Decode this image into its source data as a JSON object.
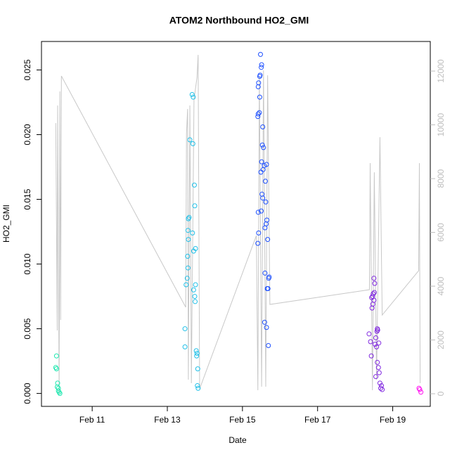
{
  "chart_data": {
    "type": "scatter",
    "title": "ATOM2 Northbound HO2_GMI",
    "xlabel": "Date",
    "ylabel": "HO2_GMI",
    "xlim": [
      9.65,
      20.0
    ],
    "ylim": [
      -0.001,
      0.0272
    ],
    "y2lim": [
      -470,
      13100
    ],
    "xticks": [
      {
        "value": 11,
        "label": "Feb 11"
      },
      {
        "value": 13,
        "label": "Feb 13"
      },
      {
        "value": 15,
        "label": "Feb 15"
      },
      {
        "value": 17,
        "label": "Feb 17"
      },
      {
        "value": 19,
        "label": "Feb 19"
      }
    ],
    "yticks": [
      {
        "value": 0,
        "label": "0.000"
      },
      0.005,
      {
        "value": 0.01,
        "label": "0.010"
      },
      0.015,
      {
        "value": 0.02,
        "label": "0.020"
      },
      0.025
    ],
    "y2ticks": [
      0,
      2000,
      4000,
      6000,
      8000,
      10000,
      12000
    ],
    "y2color": "#bebebe",
    "series": [
      {
        "type": "line",
        "axis": "y2",
        "color": "#c8c8c8",
        "x": [
          10.03,
          10.07,
          10.08,
          10.12,
          10.14,
          10.16,
          10.18,
          13.49,
          13.51,
          13.54,
          13.56,
          13.6,
          13.64,
          13.71,
          13.79,
          13.82,
          13.86,
          15.37,
          15.41,
          15.45,
          15.51,
          15.56,
          15.62,
          15.67,
          15.73,
          18.38,
          18.4,
          18.46,
          18.51,
          18.57,
          18.66,
          18.72,
          19.69,
          19.71,
          19.73
        ],
        "values": [
          10065,
          2353,
          10719,
          0,
          11242,
          2745,
          11817,
          3216,
          9673,
          10588,
          523,
          10719,
          392,
          10928,
          11765,
          12601,
          183,
          5882,
          131,
          11817,
          261,
          12026,
          261,
          11843,
          3320,
          3869,
          8575,
          131,
          8235,
          523,
          9542,
          2928,
          4575,
          8575,
          392
        ]
      },
      {
        "color": "#20e8b0",
        "x": [
          10.05,
          10.03,
          10.05,
          10.08,
          10.07,
          10.1,
          10.1,
          10.12,
          10.14
        ],
        "values": [
          0.0029,
          0.002,
          0.0019,
          0.0008,
          0.0005,
          0.0004,
          0.0002,
          0.0001,
          0.0
        ]
      },
      {
        "color": "#20c0e8",
        "x": [
          13.47,
          13.47,
          13.5,
          13.53,
          13.55,
          13.54,
          13.56,
          13.55,
          13.56,
          13.58,
          13.66,
          13.69,
          13.6,
          13.68,
          13.67,
          13.73,
          13.72,
          13.7,
          13.75,
          13.7,
          13.73,
          13.74,
          13.75,
          13.77,
          13.79,
          13.78,
          13.81,
          13.8,
          13.82
        ],
        "values": [
          0.005,
          0.0036,
          0.0084,
          0.0089,
          0.0097,
          0.0106,
          0.0119,
          0.0126,
          0.0135,
          0.0136,
          0.0231,
          0.0229,
          0.0196,
          0.0193,
          0.0124,
          0.0145,
          0.0161,
          0.011,
          0.0112,
          0.008,
          0.0075,
          0.0071,
          0.0084,
          0.0033,
          0.0031,
          0.0029,
          0.0019,
          0.0006,
          0.0004
        ]
      },
      {
        "color": "#1e50ff",
        "x": [
          15.48,
          15.51,
          15.5,
          15.47,
          15.46,
          15.43,
          15.42,
          15.46,
          15.45,
          15.42,
          15.41,
          15.54,
          15.53,
          15.56,
          15.51,
          15.64,
          15.58,
          15.55,
          15.49,
          15.61,
          15.52,
          15.54,
          15.62,
          15.5,
          15.42,
          15.65,
          15.63,
          15.6,
          15.43,
          15.67,
          15.41,
          15.6,
          15.71,
          15.7,
          15.66,
          15.68,
          15.59,
          15.64,
          15.69
        ],
        "values": [
          0.0262,
          0.0254,
          0.0252,
          0.0246,
          0.0245,
          0.024,
          0.0237,
          0.0229,
          0.0217,
          0.0216,
          0.0214,
          0.0206,
          0.0192,
          0.019,
          0.0179,
          0.0177,
          0.0176,
          0.0173,
          0.0171,
          0.0164,
          0.0154,
          0.0151,
          0.0148,
          0.0141,
          0.014,
          0.0134,
          0.0131,
          0.0128,
          0.0124,
          0.0119,
          0.0116,
          0.0093,
          0.009,
          0.0089,
          0.0081,
          0.0081,
          0.0055,
          0.0051,
          0.0037
        ]
      },
      {
        "color": "#8028e0",
        "x": [
          18.5,
          18.52,
          18.51,
          18.48,
          18.46,
          18.44,
          18.5,
          18.47,
          18.45,
          18.59,
          18.6,
          18.58,
          18.37,
          18.55,
          18.41,
          18.63,
          18.53,
          18.57,
          18.43,
          18.59,
          18.62,
          18.64,
          18.55,
          18.66,
          18.7,
          18.68,
          18.72
        ],
        "values": [
          0.0089,
          0.0085,
          0.0078,
          0.0077,
          0.0075,
          0.0074,
          0.0072,
          0.0069,
          0.0066,
          0.005,
          0.0049,
          0.0048,
          0.0046,
          0.0043,
          0.004,
          0.0039,
          0.0038,
          0.0036,
          0.0029,
          0.0024,
          0.002,
          0.0016,
          0.0013,
          0.0008,
          0.0006,
          0.0004,
          0.0003
        ]
      },
      {
        "color": "#ff10f0",
        "x": [
          19.7,
          19.72,
          19.75
        ],
        "values": [
          0.0004,
          0.0003,
          0.0001
        ]
      }
    ]
  }
}
